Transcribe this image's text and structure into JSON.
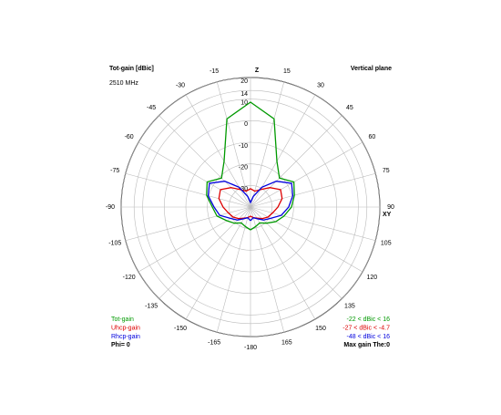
{
  "chart_data": {
    "type": "polar",
    "title": "Tot-gain [dBic]",
    "subtitle": "2510 MHz",
    "plane_label": "Vertical plane",
    "axis_labels": {
      "top": "Z",
      "right": "XY"
    },
    "rlim": [
      -40,
      20
    ],
    "rticks": [
      20,
      14,
      10,
      0,
      -10,
      -20,
      -30
    ],
    "angle_ticks": [
      -180,
      -165,
      -150,
      -135,
      -120,
      -105,
      -90,
      -75,
      -60,
      -45,
      -30,
      -15,
      15,
      30,
      45,
      60,
      75,
      90,
      105,
      120,
      135,
      150,
      165
    ],
    "grid": true,
    "x": [
      -180,
      -165,
      -150,
      -135,
      -120,
      -105,
      -90,
      -75,
      -60,
      -45,
      -30,
      -15,
      0,
      15,
      30,
      45,
      60,
      75,
      90,
      105,
      120,
      135,
      150,
      165,
      180
    ],
    "series": [
      {
        "name": "Tot-gain",
        "color": "#009900",
        "range_label": "-22 < dBic < 16",
        "values": [
          -29.4,
          -30.7,
          -31.5,
          -29.4,
          -27.3,
          -23.9,
          -22.3,
          -18.9,
          -16.8,
          -21,
          -15.5,
          2.3,
          8.6,
          2.3,
          -15.5,
          -21,
          -16.8,
          -18.9,
          -21,
          -23.9,
          -26.5,
          -29.4,
          -31.5,
          -30.7,
          -29.4
        ]
      },
      {
        "name": "Uhcp-gain",
        "color": "#dd0000",
        "range_label": "-27 < dBic < -4.7",
        "values": [
          -35.8,
          -34.9,
          -34.1,
          -32.4,
          -30.7,
          -29.4,
          -27.3,
          -24.8,
          -23.9,
          -27.3,
          -30.7,
          -32.4,
          -31.5,
          -32.4,
          -30.7,
          -27.3,
          -23.9,
          -24.8,
          -27.3,
          -29.4,
          -30.7,
          -32.4,
          -34.1,
          -34.9,
          -35.8
        ]
      },
      {
        "name": "Rhcp-gain",
        "color": "#0000dd",
        "range_label": "-48 < dBic < 16",
        "values": [
          -33.7,
          -34.9,
          -33.7,
          -31.5,
          -29.4,
          -25.2,
          -23.1,
          -19.7,
          -18,
          -23.1,
          -29.4,
          -34.9,
          -37.9,
          -34.9,
          -29.4,
          -23.1,
          -18,
          -19.7,
          -22.3,
          -25.2,
          -29.4,
          -31.5,
          -33.7,
          -34.9,
          -33.7
        ]
      }
    ],
    "footer_left": "Phi= 0",
    "footer_right": "Max gain The:0"
  }
}
